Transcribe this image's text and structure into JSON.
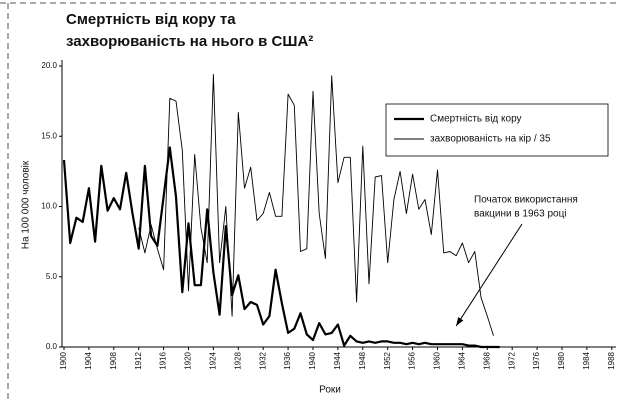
{
  "chart_data": {
    "type": "line",
    "title": [
      "Смертність від кору та",
      "захворюваність на нього в США²"
    ],
    "x_label": "Роки",
    "y_label": "На 100 000 чоловік",
    "x": [
      1900,
      1901,
      1902,
      1903,
      1904,
      1905,
      1906,
      1907,
      1908,
      1909,
      1910,
      1911,
      1912,
      1913,
      1914,
      1915,
      1916,
      1917,
      1918,
      1919,
      1920,
      1921,
      1922,
      1923,
      1924,
      1925,
      1926,
      1927,
      1928,
      1929,
      1930,
      1931,
      1932,
      1933,
      1934,
      1935,
      1936,
      1937,
      1938,
      1939,
      1940,
      1941,
      1942,
      1943,
      1944,
      1945,
      1946,
      1947,
      1948,
      1949,
      1950,
      1951,
      1952,
      1953,
      1954,
      1955,
      1956,
      1957,
      1958,
      1959,
      1960,
      1961,
      1962,
      1963,
      1964,
      1965,
      1966,
      1967,
      1968,
      1969,
      1970
    ],
    "series": [
      {
        "name": "Смертність від кору",
        "color": "#000000",
        "width": 2.2,
        "values": [
          13.3,
          7.4,
          9.2,
          8.9,
          11.3,
          7.5,
          12.9,
          9.7,
          10.6,
          9.8,
          12.4,
          9.5,
          7.0,
          12.9,
          7.9,
          7.2,
          10.7,
          14.2,
          10.7,
          3.9,
          8.8,
          4.4,
          4.4,
          9.8,
          5.3,
          2.3,
          8.6,
          3.7,
          5.1,
          2.7,
          3.2,
          3.0,
          1.6,
          2.2,
          5.5,
          3.1,
          1.0,
          1.3,
          2.4,
          0.9,
          0.5,
          1.7,
          0.9,
          1.0,
          1.6,
          0.1,
          0.8,
          0.4,
          0.3,
          0.4,
          0.3,
          0.4,
          0.4,
          0.3,
          0.3,
          0.2,
          0.3,
          0.2,
          0.3,
          0.2,
          0.2,
          0.2,
          0.2,
          0.2,
          0.2,
          0.1,
          0.1,
          0.0,
          0.0,
          0.0,
          0.0
        ]
      },
      {
        "name": "захворюваність на кір / 35",
        "color": "#000000",
        "width": 0.9,
        "values": [
          null,
          null,
          null,
          null,
          null,
          null,
          null,
          null,
          null,
          null,
          null,
          null,
          8.5,
          6.7,
          8.7,
          7.0,
          5.5,
          17.7,
          17.5,
          14.0,
          4.0,
          13.7,
          8.5,
          6.0,
          19.4,
          6.0,
          10.0,
          2.2,
          16.7,
          11.3,
          12.8,
          9.0,
          9.5,
          11.0,
          9.3,
          9.3,
          18.0,
          17.2,
          6.8,
          7.0,
          18.2,
          9.5,
          6.3,
          19.3,
          11.7,
          13.5,
          13.5,
          3.2,
          14.3,
          4.5,
          12.1,
          12.2,
          6.0,
          10.5,
          12.5,
          9.5,
          12.3,
          9.8,
          10.5,
          8.0,
          12.6,
          6.7,
          6.8,
          6.5,
          7.4,
          6.0,
          6.8,
          3.5,
          2.2,
          0.8,
          null
        ]
      }
    ],
    "xlim": [
      1900,
      1989
    ],
    "xticks": [
      1900,
      1904,
      1908,
      1912,
      1916,
      1920,
      1924,
      1928,
      1932,
      1936,
      1940,
      1944,
      1948,
      1952,
      1956,
      1960,
      1964,
      1968,
      1972,
      1976,
      1980,
      1984,
      1988
    ],
    "ylim": [
      0,
      20
    ],
    "yticks": [
      {
        "value": 0,
        "label": "0.0"
      },
      {
        "value": 5,
        "label": "5.0"
      },
      {
        "value": 10,
        "label": "10.0"
      },
      {
        "value": 15,
        "label": "15.0"
      },
      {
        "value": 20,
        "label": "20.0"
      }
    ],
    "annotation": {
      "lines": [
        "Початок використання",
        "вакцини в 1963 році"
      ],
      "x": 1963,
      "y": 1.5
    },
    "legend": "upper right"
  }
}
